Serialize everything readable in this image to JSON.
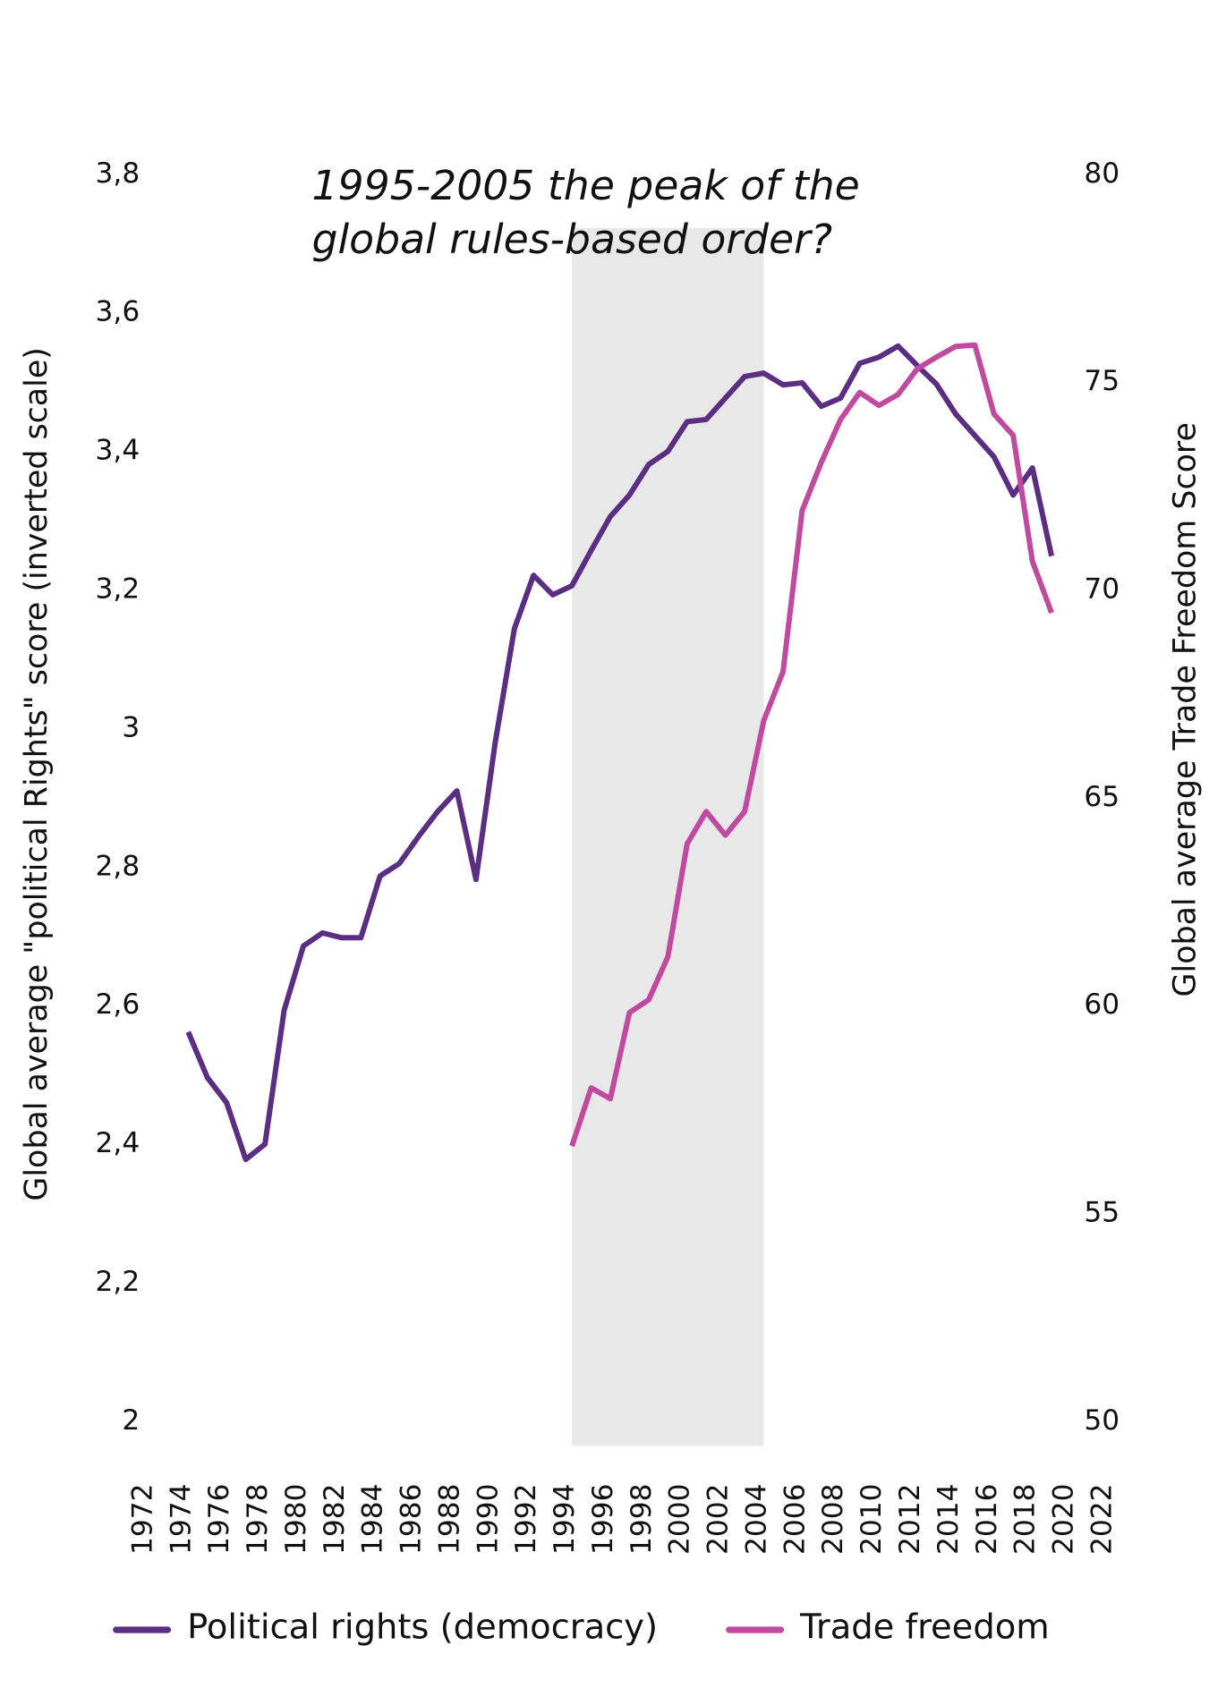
{
  "chart_data": {
    "type": "line",
    "title": [
      "1995-2005 the peak of the",
      "global rules-based order?"
    ],
    "y_label": "Global average \"political Rights\" score (inverted scale)",
    "y2_label": "Global average Trade Freedom Score",
    "xlim": [
      1972,
      2022
    ],
    "xticks": [
      1972,
      1974,
      1976,
      1978,
      1980,
      1982,
      1984,
      1986,
      1988,
      1990,
      1992,
      1994,
      1996,
      1998,
      2000,
      2002,
      2004,
      2006,
      2008,
      2010,
      2012,
      2014,
      2016,
      2018,
      2020,
      2022
    ],
    "ylim": [
      2,
      3.8
    ],
    "yticks": [
      {
        "value": 2,
        "label": "2"
      },
      {
        "value": 2.2,
        "label": "2,2"
      },
      {
        "value": 2.4,
        "label": "2,4"
      },
      {
        "value": 2.6,
        "label": "2,6"
      },
      {
        "value": 2.8,
        "label": "2,8"
      },
      {
        "value": 3,
        "label": "3"
      },
      {
        "value": 3.2,
        "label": "3,2"
      },
      {
        "value": 3.4,
        "label": "3,4"
      },
      {
        "value": 3.6,
        "label": "3,6"
      },
      {
        "value": 3.8,
        "label": "3,8"
      }
    ],
    "y2lim": [
      50,
      80
    ],
    "y2ticks": [
      50,
      55,
      60,
      65,
      70,
      75,
      80
    ],
    "highlight_range": [
      1995,
      2005
    ],
    "highlight_color": "#e8e8e8",
    "legend": "bottom",
    "series": [
      {
        "name": "Political rights (democracy)",
        "color": "#5b2d83",
        "x": [
          1975,
          1976,
          1977,
          1978,
          1979,
          1980,
          1981,
          1982,
          1983,
          1984,
          1985,
          1986,
          1987,
          1988,
          1989,
          1990,
          1991,
          1992,
          1993,
          1994,
          1995,
          1996,
          1997,
          1998,
          1999,
          2000,
          2001,
          2002,
          2003,
          2004,
          2005,
          2006,
          2007,
          2008,
          2009,
          2010,
          2011,
          2012,
          2013,
          2014,
          2015,
          2016,
          2017,
          2018,
          2019,
          2020
        ],
        "values": [
          2.562,
          2.496,
          2.46,
          2.378,
          2.4,
          2.593,
          2.686,
          2.705,
          2.698,
          2.698,
          2.787,
          2.805,
          2.844,
          2.88,
          2.91,
          2.782,
          2.98,
          3.144,
          3.221,
          3.193,
          3.206,
          3.257,
          3.306,
          3.337,
          3.381,
          3.4,
          3.443,
          3.446,
          3.477,
          3.508,
          3.513,
          3.496,
          3.499,
          3.465,
          3.477,
          3.527,
          3.536,
          3.552,
          3.524,
          3.497,
          3.454,
          3.423,
          3.392,
          3.337,
          3.376,
          3.249
        ]
      },
      {
        "name": "Trade freedom",
        "color": "#c04aa0",
        "axis": "y2",
        "x": [
          1995,
          1996,
          1997,
          1998,
          1999,
          2000,
          2001,
          2002,
          2003,
          2004,
          2005,
          2006,
          2007,
          2008,
          2009,
          2010,
          2011,
          2012,
          2013,
          2014,
          2015,
          2016,
          2017,
          2018,
          2019,
          2020
        ],
        "values": [
          56.62,
          58.02,
          57.76,
          59.83,
          60.14,
          61.17,
          63.89,
          64.67,
          64.1,
          64.67,
          66.86,
          68.03,
          71.91,
          73.07,
          74.1,
          74.75,
          74.44,
          74.7,
          75.32,
          75.6,
          75.86,
          75.89,
          74.23,
          73.72,
          70.69,
          69.45
        ]
      }
    ]
  }
}
